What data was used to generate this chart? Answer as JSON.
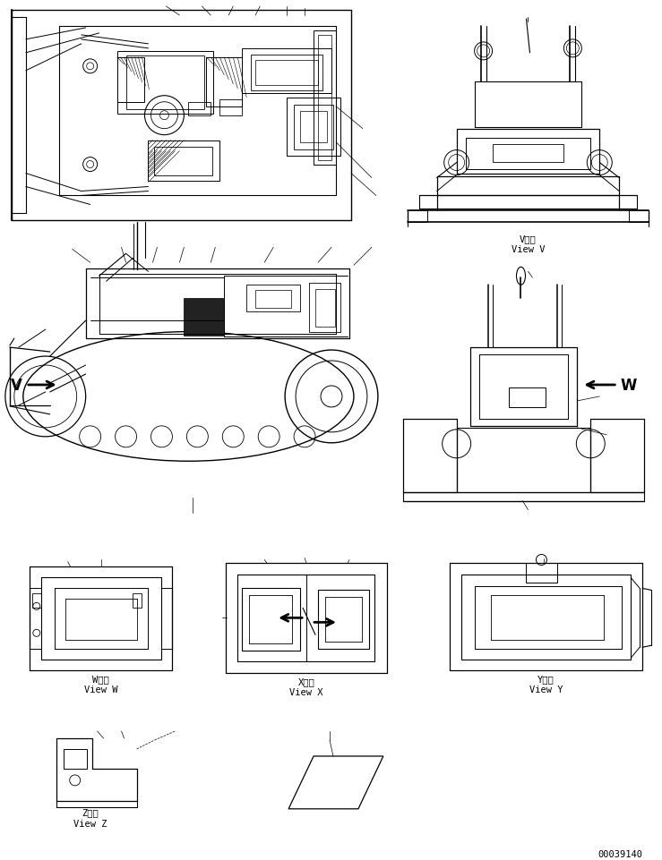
{
  "background_color": "#ffffff",
  "line_color": "#000000",
  "page_number": "00039140",
  "figsize": [
    7.39,
    9.62
  ],
  "dpi": 100,
  "view_V_label_jp": "V　視",
  "view_V_label_en": "View V",
  "view_W_label_jp": "W　視",
  "view_W_label_en": "View W",
  "view_X_label_jp": "X　視",
  "view_X_label_en": "View X",
  "view_Y_label_jp": "Y　視",
  "view_Y_label_en": "View Y",
  "view_Z_label_jp": "Z　視",
  "view_Z_label_en": "View Z"
}
